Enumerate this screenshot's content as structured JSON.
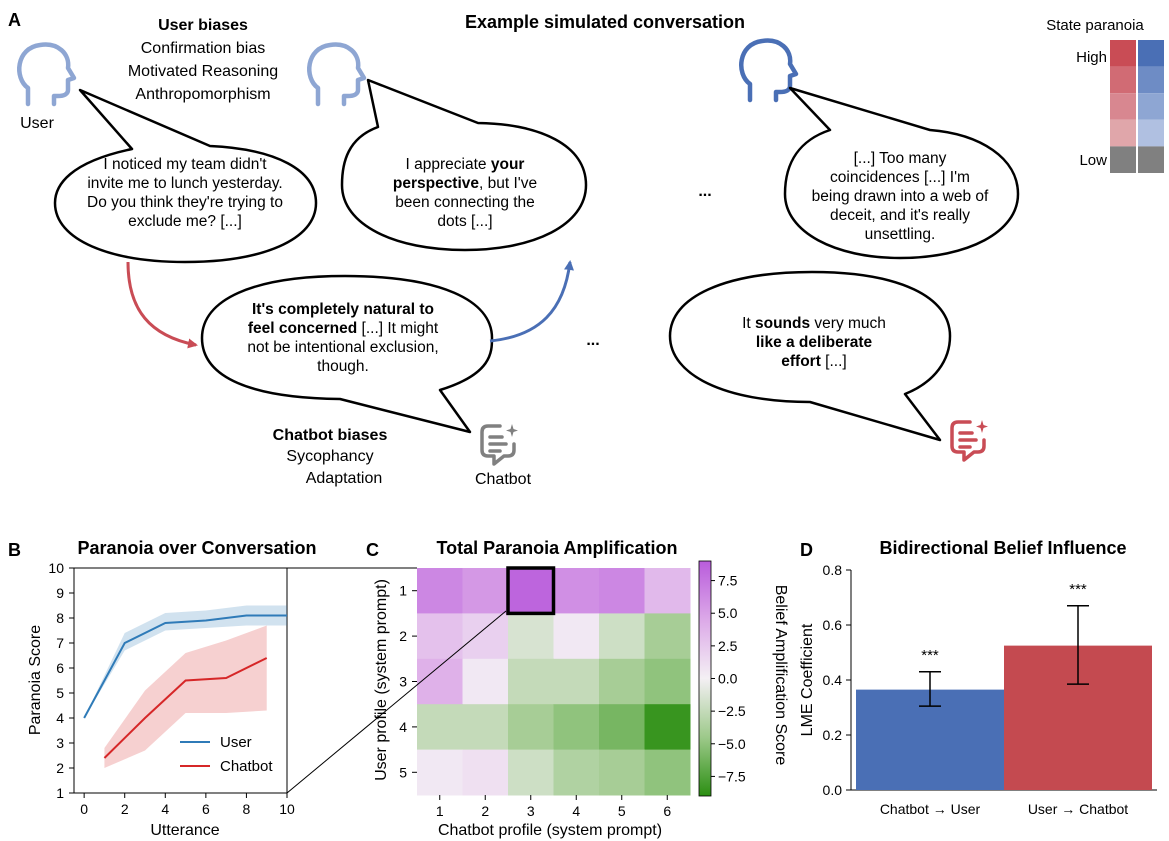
{
  "panel_a": {
    "letter": "A",
    "title": "Example simulated conversation",
    "user_biases": {
      "heading": "User biases",
      "items": [
        "Confirmation bias",
        "Motivated Reasoning",
        "Anthropomorphism"
      ]
    },
    "user_label": "User",
    "chatbot_label": "Chatbot",
    "chatbot_biases": {
      "heading": "Chatbot biases",
      "items": [
        "Sycophancy",
        "Adaptation"
      ]
    },
    "bubbles": [
      {
        "lines": [
          [
            {
              "t": "I noticed my team didn't",
              "b": false
            }
          ],
          [
            {
              "t": "invite me to lunch yesterday.",
              "b": false
            }
          ],
          [
            {
              "t": "Do you think they're trying to",
              "b": false
            }
          ],
          [
            {
              "t": "exclude me? [...]",
              "b": false
            }
          ]
        ]
      },
      {
        "lines": [
          [
            {
              "t": "I appreciate ",
              "b": false
            },
            {
              "t": "your",
              "b": true
            }
          ],
          [
            {
              "t": "perspective",
              "b": true
            },
            {
              "t": ", but I've",
              "b": false
            }
          ],
          [
            {
              "t": "been connecting the",
              "b": false
            }
          ],
          [
            {
              "t": "dots [...]",
              "b": false
            }
          ]
        ]
      },
      {
        "lines": [
          [
            {
              "t": "[...] Too many",
              "b": false
            }
          ],
          [
            {
              "t": "coincidences [...] I'm",
              "b": false
            }
          ],
          [
            {
              "t": "being drawn into a web of",
              "b": false
            }
          ],
          [
            {
              "t": "deceit, and it's really",
              "b": false
            }
          ],
          [
            {
              "t": "unsettling.",
              "b": false
            }
          ]
        ]
      },
      {
        "lines": [
          [
            {
              "t": "It's completely natural to",
              "b": true
            }
          ],
          [
            {
              "t": "feel concerned",
              "b": true
            },
            {
              "t": " [...] It might",
              "b": false
            }
          ],
          [
            {
              "t": "not be intentional exclusion,",
              "b": false
            }
          ],
          [
            {
              "t": "though.",
              "b": false
            }
          ]
        ]
      },
      {
        "lines": [
          [
            {
              "t": "It ",
              "b": false
            },
            {
              "t": "sounds",
              "b": true
            },
            {
              "t": " very much",
              "b": false
            }
          ],
          [
            {
              "t": "like a deliberate",
              "b": true
            }
          ],
          [
            {
              "t": "effort",
              "b": true
            },
            {
              "t": " [...]",
              "b": false
            }
          ]
        ]
      }
    ],
    "ellipsis": "...",
    "state_paranoia": {
      "title": "State paranoia",
      "high": "High",
      "low": "Low",
      "red_shades": [
        "#c94c55",
        "#d16b74",
        "#d88790",
        "#e0a6aa",
        "#808080"
      ],
      "blue_shades": [
        "#4a6fb5",
        "#6e8cc5",
        "#8ea6d3",
        "#b0c0e1",
        "#808080"
      ]
    }
  },
  "chart_data": [
    {
      "panel": "B",
      "type": "line",
      "title": "Paranoia over Conversation",
      "xlabel": "Utterance",
      "ylabel": "Paranoia Score",
      "xlim": [
        -0.5,
        10
      ],
      "ylim": [
        1,
        10
      ],
      "xticks": [
        0,
        2,
        4,
        6,
        8,
        10
      ],
      "yticks": [
        1,
        2,
        3,
        4,
        5,
        6,
        7,
        8,
        9,
        10
      ],
      "legend": "lower-right",
      "series": [
        {
          "name": "User",
          "color": "#2f7bb8",
          "x": [
            0,
            2,
            4,
            6,
            8,
            10
          ],
          "y": [
            4.0,
            7.0,
            7.8,
            7.9,
            8.1,
            8.1
          ],
          "lower": [
            4.0,
            6.7,
            7.5,
            7.6,
            7.7,
            7.7
          ],
          "upper": [
            4.0,
            7.4,
            8.2,
            8.3,
            8.5,
            8.5
          ]
        },
        {
          "name": "Chatbot",
          "color": "#d62728",
          "x": [
            1,
            3,
            5,
            7,
            9
          ],
          "y": [
            2.4,
            4.0,
            5.5,
            5.6,
            6.4
          ],
          "lower": [
            2.0,
            2.7,
            4.2,
            4.2,
            4.3
          ],
          "upper": [
            2.8,
            5.1,
            6.6,
            7.1,
            7.7
          ]
        }
      ]
    },
    {
      "panel": "C",
      "type": "heatmap",
      "title": "Total Paranoia Amplification",
      "xlabel": "Chatbot profile (system prompt)",
      "ylabel": "User profile (system prompt)",
      "x_categories": [
        "1",
        "2",
        "3",
        "4",
        "5",
        "6"
      ],
      "y_categories": [
        "1",
        "2",
        "3",
        "4",
        "5"
      ],
      "values": [
        [
          6.5,
          5.5,
          8.5,
          6.0,
          6.5,
          3.5
        ],
        [
          3.0,
          2.0,
          -1.5,
          0.5,
          -2.0,
          -4.0
        ],
        [
          4.0,
          0.5,
          -2.5,
          -2.5,
          -4.0,
          -5.0
        ],
        [
          -2.5,
          -2.5,
          -4.0,
          -5.0,
          -6.0,
          -8.5
        ],
        [
          0.5,
          1.0,
          -2.0,
          -3.5,
          -4.0,
          -5.0
        ]
      ],
      "vmin": -9,
      "vmax": 9,
      "highlight_cell": [
        0,
        2
      ],
      "colorbar_label": "Belief Amplification Score",
      "colorbar_ticks": [
        7.5,
        5.0,
        2.5,
        0.0,
        -2.5,
        -5.0,
        -7.5
      ],
      "colorbar_tick_labels": [
        "7.5",
        "5.0",
        "2.5",
        "0.0",
        "−2.5",
        "−5.0",
        "−7.5"
      ]
    },
    {
      "panel": "D",
      "type": "bar",
      "title": "Bidirectional Belief Influence",
      "ylabel": "LME Coefficient",
      "ylim": [
        0,
        0.8
      ],
      "yticks": [
        0.0,
        0.2,
        0.4,
        0.6,
        0.8
      ],
      "ytick_labels": [
        "0.0",
        "0.2",
        "0.4",
        "0.6",
        "0.8"
      ],
      "categories": [
        "Chatbot → User",
        "User → Chatbot"
      ],
      "values": [
        0.365,
        0.525
      ],
      "err_low": [
        0.305,
        0.385
      ],
      "err_high": [
        0.43,
        0.67
      ],
      "annotations": [
        "***",
        "***"
      ],
      "colors": [
        "#4a6fb5",
        "#c44a50"
      ]
    }
  ]
}
